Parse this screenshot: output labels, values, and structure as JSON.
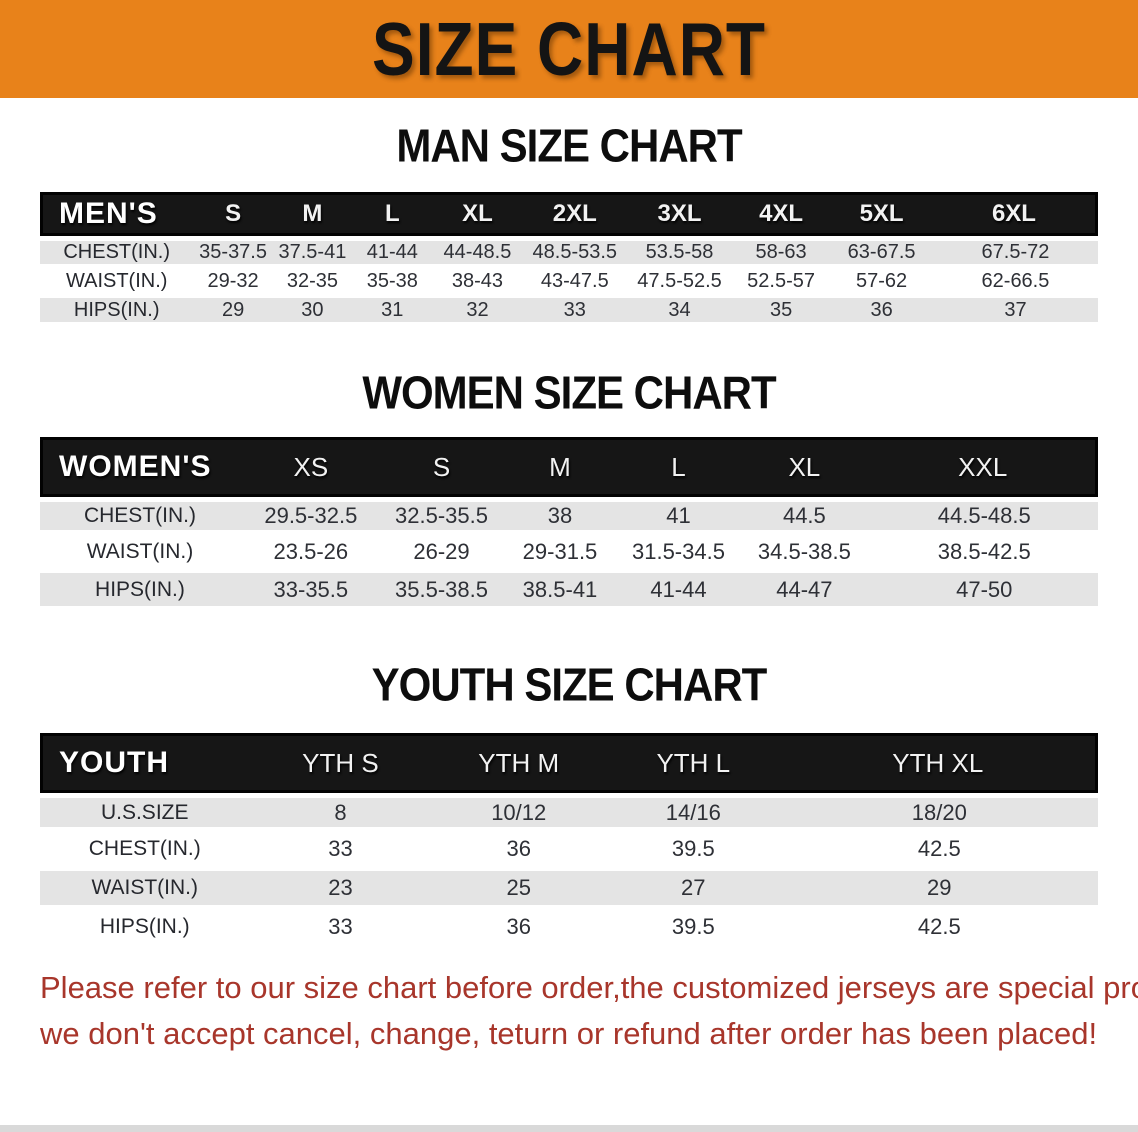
{
  "banner": {
    "title": "SIZE CHART"
  },
  "palette": {
    "banner_orange": "#E8821A",
    "header_black": "#161616",
    "stripe_gray": "#E4E4E4",
    "text_dark": "#2E3036",
    "footer_red": "#A8362B"
  },
  "sections": [
    {
      "id": "men",
      "heading": "MAN SIZE CHART",
      "table": {
        "group_label": "MEN'S",
        "columns": [
          "S",
          "M",
          "L",
          "XL",
          "2XL",
          "3XL",
          "4XL",
          "5XL",
          "6XL"
        ],
        "rows": [
          {
            "label": "CHEST(IN.)",
            "values": [
              "35-37.5",
              "37.5-41",
              "41-44",
              "44-48.5",
              "48.5-53.5",
              "53.5-58",
              "58-63",
              "63-67.5",
              "67.5-72"
            ]
          },
          {
            "label": "WAIST(IN.)",
            "values": [
              "29-32",
              "32-35",
              "35-38",
              "38-43",
              "43-47.5",
              "47.5-52.5",
              "52.5-57",
              "57-62",
              "62-66.5"
            ]
          },
          {
            "label": "HIPS(IN.)",
            "values": [
              "29",
              "30",
              "31",
              "32",
              "33",
              "34",
              "35",
              "36",
              "37"
            ]
          }
        ]
      }
    },
    {
      "id": "women",
      "heading": "WOMEN SIZE CHART",
      "table": {
        "group_label": "WOMEN'S",
        "columns": [
          "XS",
          "S",
          "M",
          "L",
          "XL",
          "XXL"
        ],
        "rows": [
          {
            "label": "CHEST(IN.)",
            "values": [
              "29.5-32.5",
              "32.5-35.5",
              "38",
              "41",
              "44.5",
              "44.5-48.5"
            ]
          },
          {
            "label": "WAIST(IN.)",
            "values": [
              "23.5-26",
              "26-29",
              "29-31.5",
              "31.5-34.5",
              "34.5-38.5",
              "38.5-42.5"
            ]
          },
          {
            "label": "HIPS(IN.)",
            "values": [
              "33-35.5",
              "35.5-38.5",
              "38.5-41",
              "41-44",
              "44-47",
              "47-50"
            ]
          }
        ]
      }
    },
    {
      "id": "youth",
      "heading": "YOUTH SIZE CHART",
      "table": {
        "group_label": "YOUTH",
        "columns": [
          "YTH S",
          "YTH M",
          "YTH L",
          "YTH XL"
        ],
        "rows": [
          {
            "label": "U.S.SIZE",
            "values": [
              "8",
              "10/12",
              "14/16",
              "18/20"
            ]
          },
          {
            "label": "CHEST(IN.)",
            "values": [
              "33",
              "36",
              "39.5",
              "42.5"
            ]
          },
          {
            "label": "WAIST(IN.)",
            "values": [
              "23",
              "25",
              "27",
              "29"
            ]
          },
          {
            "label": "HIPS(IN.)",
            "values": [
              "33",
              "36",
              "39.5",
              "42.5"
            ]
          }
        ]
      }
    }
  ],
  "footer": {
    "lines": [
      "Please refer to our size chart before order,the customized jerseys are special products,",
      "we don't accept cancel, change, teturn or refund after order has been placed!"
    ]
  }
}
